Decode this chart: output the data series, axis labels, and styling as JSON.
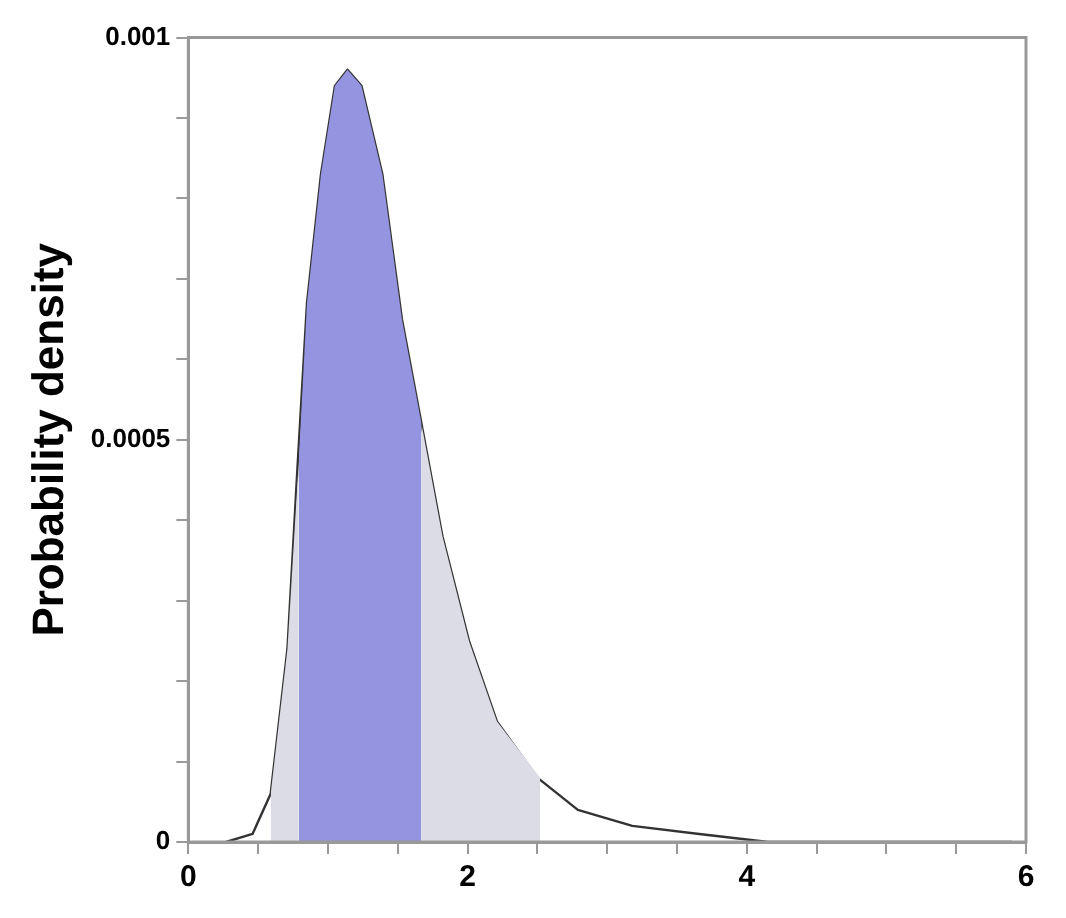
{
  "chart_data": {
    "type": "line",
    "ylabel": "Probability density",
    "x": [
      0.27,
      0.46,
      0.59,
      0.71,
      0.78,
      0.85,
      0.95,
      1.05,
      1.14,
      1.24,
      1.39,
      1.53,
      1.67,
      1.82,
      2.01,
      2.21,
      2.5,
      2.79,
      3.18,
      3.66,
      4.15,
      5.11,
      5.9
    ],
    "series": [
      {
        "type": "area",
        "color": "#dcdce6",
        "x": [
          0.59,
          0.71,
          0.79
        ],
        "values": [
          6e-05,
          0.00024,
          0.00047
        ]
      },
      {
        "type": "area",
        "color": "#9494e0",
        "x": [
          0.79,
          0.85,
          0.95,
          1.05,
          1.14,
          1.24,
          1.39,
          1.53,
          1.67
        ],
        "values": [
          0.00047,
          0.00067,
          0.00083,
          0.00094,
          0.00096,
          0.00094,
          0.00083,
          0.00065,
          0.00052
        ]
      },
      {
        "type": "area",
        "color": "#dcdce6",
        "x": [
          1.67,
          1.82,
          2.01,
          2.21,
          2.52
        ],
        "values": [
          0.00052,
          0.00038,
          0.00025,
          0.00015,
          8e-05
        ]
      },
      {
        "color": "#333333",
        "values": [
          0,
          1e-05,
          6e-05,
          0.00024,
          0.00046,
          0.00067,
          0.00083,
          0.00094,
          0.00096,
          0.00094,
          0.00083,
          0.00065,
          0.00052,
          0.00038,
          0.00025,
          0.00015,
          8e-05,
          4e-05,
          2e-05,
          1e-05,
          0,
          0,
          0
        ]
      }
    ],
    "xlim": [
      0,
      6
    ],
    "xticks": [
      0,
      {
        "value": 0.5,
        "label": null
      },
      {
        "value": 1,
        "label": null
      },
      {
        "value": 1.5,
        "label": null
      },
      2,
      {
        "value": 2.5,
        "label": null
      },
      {
        "value": 3,
        "label": null
      },
      {
        "value": 3.5,
        "label": null
      },
      4,
      {
        "value": 4.5,
        "label": null
      },
      {
        "value": 5,
        "label": null
      },
      {
        "value": 5.5,
        "label": null
      },
      6
    ],
    "ylim": [
      0,
      0.001
    ],
    "yticks": [
      0,
      {
        "value": 0.0001,
        "label": null
      },
      {
        "value": 0.0002,
        "label": null
      },
      {
        "value": 0.0003,
        "label": null
      },
      {
        "value": 0.0004,
        "label": null
      },
      0.0005,
      {
        "value": 0.0006,
        "label": null
      },
      {
        "value": 0.0007,
        "label": null
      },
      {
        "value": 0.0008,
        "label": null
      },
      {
        "value": 0.0009,
        "label": null
      },
      0.001
    ],
    "grid": false,
    "legend": false,
    "marker": "none",
    "line_style": "solid"
  }
}
